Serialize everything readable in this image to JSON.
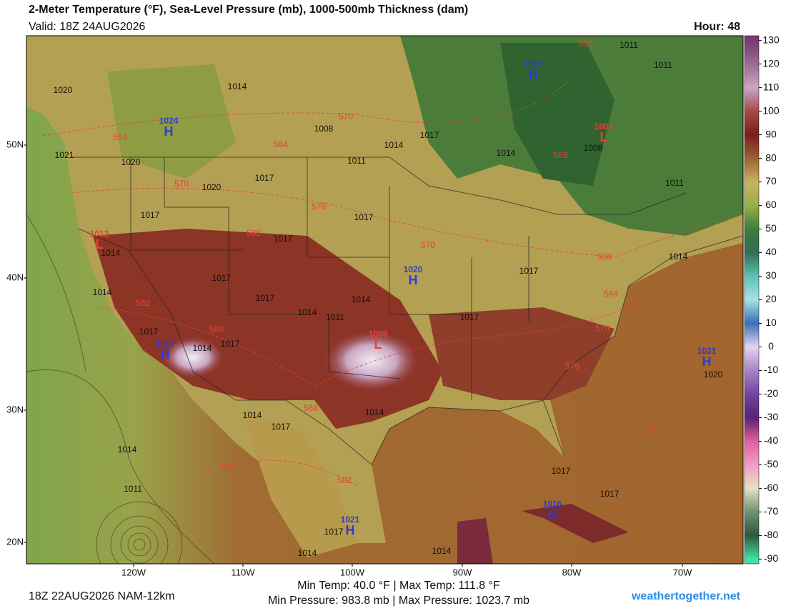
{
  "header": {
    "title": "2-Meter Temperature (°F), Sea-Level Pressure (mb), 1000-500mb Thickness (dam)",
    "valid": "Valid: 18Z 24AUG2026",
    "hour": "Hour: 48"
  },
  "map": {
    "lat_labels": [
      "50N",
      "40N",
      "30N",
      "20N"
    ],
    "lon_labels": [
      "120W",
      "110W",
      "100W",
      "90W",
      "80W",
      "70W"
    ],
    "pressure_centers": [
      {
        "symbol": "H",
        "value": 1016
      },
      {
        "symbol": "H",
        "value": 1024
      },
      {
        "symbol": "L",
        "value": 1007
      },
      {
        "symbol": "L",
        "value": 1012
      },
      {
        "symbol": "H",
        "value": 1020
      },
      {
        "symbol": "L",
        "value": 1008
      },
      {
        "symbol": "H",
        "value": 1017
      },
      {
        "symbol": "H",
        "value": 1021
      },
      {
        "symbol": "H",
        "value": 1016
      },
      {
        "symbol": "H",
        "value": 1021
      }
    ],
    "isobar_labels": [
      1011,
      1011,
      1014,
      1020,
      1008,
      1017,
      1014,
      1014,
      1008,
      1021,
      1020,
      1011,
      1017,
      1020,
      1011,
      1017,
      1017,
      1017,
      1014,
      1014,
      1017,
      1017,
      1014,
      1017,
      1014,
      1014,
      1011,
      1017,
      1017,
      1014,
      1017,
      1020,
      1014,
      1014,
      1017,
      1014,
      1017,
      1017,
      1011,
      1017,
      1014,
      1014
    ],
    "thickness_labels": [
      552,
      570,
      564,
      564,
      558,
      570,
      576,
      588,
      570,
      558,
      564,
      582,
      588,
      570,
      576,
      588,
      582,
      582,
      576
    ]
  },
  "colorbar": {
    "ticks": [
      130,
      120,
      110,
      100,
      90,
      80,
      70,
      60,
      50,
      40,
      30,
      20,
      10,
      0,
      -10,
      -20,
      -30,
      -40,
      -50,
      -60,
      -70,
      -80,
      -90
    ],
    "lim": [
      -92,
      132
    ],
    "colors": [
      "#7a3a72",
      "#9c6a92",
      "#c9a6c4",
      "#a84a48",
      "#7c1c1c",
      "#9c6234",
      "#c8b264",
      "#9aae48",
      "#3e7c3c",
      "#2f6f52",
      "#5cc2b4",
      "#a6e2e4",
      "#3a70b4",
      "#e2d4f2",
      "#a884c6",
      "#7244a2",
      "#5a2272",
      "#e0609e",
      "#f29cc6",
      "#e4e2c2",
      "#6e9270",
      "#2e5840",
      "#3ee2a2"
    ]
  },
  "footer": {
    "run": "18Z 22AUG2026 NAM-12km",
    "temp_range": "Min Temp: 40.0 °F | Max Temp: 111.8 °F",
    "pressure_range": "Min Pressure: 983.8 mb | Max Pressure: 1023.7 mb",
    "site": "weathertogether.net"
  }
}
